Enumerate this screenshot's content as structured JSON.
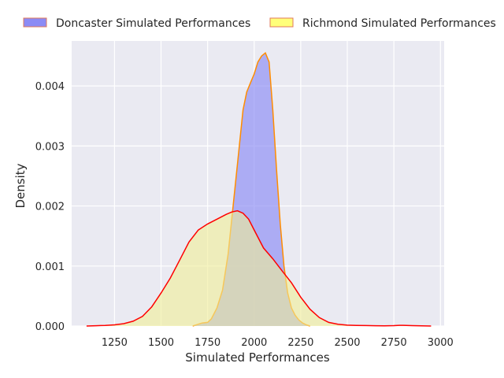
{
  "chart_data": {
    "type": "area",
    "title": "",
    "xlabel": "Simulated Performances",
    "ylabel": "Density",
    "xlim": [
      1020,
      3020
    ],
    "ylim": [
      0,
      0.00475
    ],
    "xticks": [
      1250,
      1500,
      1750,
      2000,
      2250,
      2500,
      2750,
      3000
    ],
    "yticks": [
      0.0,
      0.001,
      0.002,
      0.003,
      0.004
    ],
    "ytick_labels": [
      "0.000",
      "0.001",
      "0.002",
      "0.003",
      "0.004"
    ],
    "grid": true,
    "legend_position": "top",
    "series": [
      {
        "name": "Doncaster Simulated Performances",
        "fill_color": "#8b8bf5",
        "legend_edge_color": "#e0785a",
        "line_color": "#ff8c00",
        "points": [
          [
            1670,
            0.0
          ],
          [
            1700,
            3e-05
          ],
          [
            1720,
            5e-05
          ],
          [
            1750,
            6e-05
          ],
          [
            1770,
            0.00012
          ],
          [
            1800,
            0.0003
          ],
          [
            1830,
            0.0006
          ],
          [
            1860,
            0.0012
          ],
          [
            1890,
            0.0021
          ],
          [
            1920,
            0.003
          ],
          [
            1940,
            0.0036
          ],
          [
            1960,
            0.0039
          ],
          [
            1980,
            0.00405
          ],
          [
            2000,
            0.0042
          ],
          [
            2020,
            0.0044
          ],
          [
            2040,
            0.0045
          ],
          [
            2060,
            0.00455
          ],
          [
            2080,
            0.0044
          ],
          [
            2100,
            0.0036
          ],
          [
            2120,
            0.0026
          ],
          [
            2140,
            0.0017
          ],
          [
            2160,
            0.001
          ],
          [
            2180,
            0.00055
          ],
          [
            2200,
            0.0003
          ],
          [
            2220,
            0.00018
          ],
          [
            2240,
            0.0001
          ],
          [
            2260,
            5e-05
          ],
          [
            2280,
            2e-05
          ],
          [
            2300,
            0.0
          ]
        ]
      },
      {
        "name": "Richmond Simulated Performances",
        "fill_color": "#f0ee96",
        "legend_fill_color": "#ffff7a",
        "legend_edge_color": "#e0785a",
        "line_color": "#ff0000",
        "points": [
          [
            1100,
            0.0
          ],
          [
            1150,
            5e-06
          ],
          [
            1200,
            1e-05
          ],
          [
            1250,
            2e-05
          ],
          [
            1300,
            4e-05
          ],
          [
            1350,
            8e-05
          ],
          [
            1400,
            0.00016
          ],
          [
            1450,
            0.00032
          ],
          [
            1500,
            0.00055
          ],
          [
            1550,
            0.0008
          ],
          [
            1600,
            0.0011
          ],
          [
            1650,
            0.0014
          ],
          [
            1700,
            0.0016
          ],
          [
            1750,
            0.0017
          ],
          [
            1800,
            0.00178
          ],
          [
            1850,
            0.00186
          ],
          [
            1880,
            0.0019
          ],
          [
            1910,
            0.00192
          ],
          [
            1940,
            0.00188
          ],
          [
            1970,
            0.00178
          ],
          [
            2000,
            0.0016
          ],
          [
            2050,
            0.0013
          ],
          [
            2100,
            0.00112
          ],
          [
            2150,
            0.00092
          ],
          [
            2200,
            0.00072
          ],
          [
            2250,
            0.00048
          ],
          [
            2300,
            0.00028
          ],
          [
            2350,
            0.00014
          ],
          [
            2400,
            6e-05
          ],
          [
            2450,
            3e-05
          ],
          [
            2500,
            1.5e-05
          ],
          [
            2550,
            1e-05
          ],
          [
            2600,
            8e-06
          ],
          [
            2650,
            5e-06
          ],
          [
            2700,
            4e-06
          ],
          [
            2750,
            6e-06
          ],
          [
            2780,
            1.2e-05
          ],
          [
            2800,
            1.2e-05
          ],
          [
            2850,
            6e-06
          ],
          [
            2900,
            2e-06
          ],
          [
            2950,
            0.0
          ]
        ]
      }
    ]
  }
}
